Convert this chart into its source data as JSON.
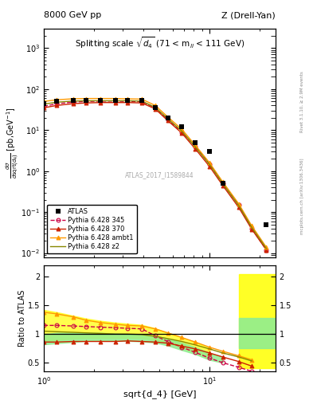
{
  "title_left": "8000 GeV pp",
  "title_right": "Z (Drell-Yan)",
  "inner_title": "Splitting scale $\\sqrt{d_4}$ (71 < m$_{ll}$ < 111 GeV)",
  "xlabel": "sqrt{d_4} [GeV]",
  "ylabel_ratio": "Ratio to ATLAS",
  "watermark": "ATLAS_2017_I1589844",
  "right_label1": "Rivet 3.1.10, ≥ 2.9M events",
  "right_label2": "mcplots.cern.ch [arXiv:1306.3436]",
  "x_data": [
    1.0,
    1.2,
    1.5,
    1.8,
    2.2,
    2.7,
    3.2,
    3.9,
    4.7,
    5.6,
    6.8,
    8.2,
    10.0,
    12.0,
    15.0,
    18.0,
    22.0
  ],
  "atlas_y": [
    45,
    50,
    52,
    53,
    54,
    54,
    53,
    52,
    35,
    20,
    12,
    5,
    3.0,
    0.5,
    null,
    null,
    0.05
  ],
  "p345_y": [
    38,
    44,
    48,
    50,
    51,
    51,
    50,
    49,
    35,
    18,
    9,
    4,
    1.5,
    0.5,
    0.15,
    0.04,
    0.012
  ],
  "p370_y": [
    35,
    40,
    44,
    46,
    47,
    47,
    47,
    46,
    33,
    17,
    8.5,
    3.5,
    1.3,
    0.45,
    0.13,
    0.038,
    0.012
  ],
  "pambt_y": [
    50,
    55,
    58,
    59,
    59,
    59,
    58,
    57,
    40,
    21,
    10.5,
    4.3,
    1.6,
    0.55,
    0.16,
    0.046,
    0.014
  ],
  "pz2_y": [
    43,
    48,
    51,
    52,
    52,
    52,
    52,
    51,
    36,
    19,
    9.5,
    3.9,
    1.45,
    0.5,
    0.145,
    0.042,
    0.013
  ],
  "p345_band_lo": [
    0.82,
    0.84,
    0.86,
    0.88,
    0.88,
    0.88,
    0.88,
    0.87,
    0.85,
    0.8,
    0.72,
    0.65,
    0.55,
    0.5,
    null,
    null,
    null
  ],
  "p345_band_hi": [
    1.0,
    1.02,
    1.02,
    1.02,
    1.02,
    1.01,
    1.0,
    0.99,
    0.97,
    0.92,
    0.85,
    0.77,
    0.67,
    0.6,
    null,
    null,
    null
  ],
  "pambt_band_lo": [
    0.88,
    0.9,
    0.92,
    0.93,
    0.93,
    0.93,
    0.93,
    0.93,
    0.9,
    0.85,
    0.76,
    0.67,
    0.57,
    null,
    null,
    null,
    null
  ],
  "pambt_band_hi": [
    1.42,
    1.38,
    1.32,
    1.27,
    1.23,
    1.2,
    1.18,
    1.16,
    1.1,
    1.02,
    0.94,
    0.86,
    0.75,
    null,
    null,
    null,
    null
  ],
  "ratio_345": [
    1.15,
    1.15,
    1.14,
    1.13,
    1.12,
    1.11,
    1.1,
    1.09,
    0.97,
    0.87,
    0.77,
    0.68,
    0.58,
    0.5,
    0.42,
    0.35,
    null
  ],
  "ratio_370": [
    0.86,
    0.86,
    0.87,
    0.87,
    0.87,
    0.87,
    0.88,
    0.87,
    0.86,
    0.84,
    0.79,
    0.74,
    0.67,
    0.6,
    0.52,
    0.44,
    null
  ],
  "ratio_ambt": [
    1.38,
    1.35,
    1.3,
    1.24,
    1.2,
    1.17,
    1.15,
    1.14,
    1.09,
    1.02,
    0.94,
    0.86,
    0.77,
    0.7,
    0.62,
    0.55,
    null
  ],
  "ratio_z2": [
    1.05,
    1.04,
    1.03,
    1.02,
    1.01,
    1.0,
    1.0,
    0.99,
    0.96,
    0.92,
    0.87,
    0.81,
    0.74,
    0.67,
    0.6,
    0.53,
    null
  ],
  "last_bin_xmin": 15.0,
  "last_bin_xmax": 25.0,
  "band_yellow_lo": 0.4,
  "band_yellow_hi": 2.05,
  "band_green_lo": 0.75,
  "band_green_hi": 1.28,
  "color_atlas": "#000000",
  "color_345": "#cc0044",
  "color_370": "#cc2200",
  "color_ambt": "#ff9900",
  "color_z2": "#888800",
  "ylim_main": [
    0.008,
    3000
  ],
  "ylim_ratio": [
    0.35,
    2.2
  ],
  "xlim": [
    1.0,
    25.0
  ]
}
